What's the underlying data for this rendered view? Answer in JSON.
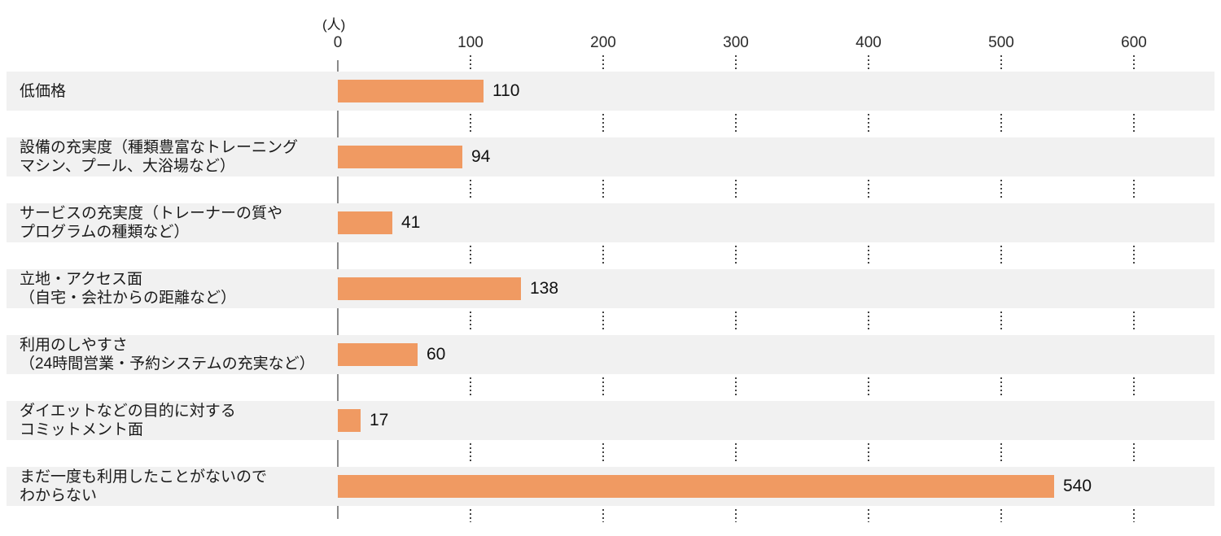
{
  "chart_data": {
    "type": "bar",
    "orientation": "horizontal",
    "title": "",
    "unit_label": "(人)",
    "xlabel": "",
    "ylabel": "",
    "x_ticks": [
      "0",
      "100",
      "200",
      "300",
      "400",
      "500",
      "600"
    ],
    "x_tick_values": [
      0,
      100,
      200,
      300,
      400,
      500,
      600
    ],
    "xlim": [
      0,
      660
    ],
    "grid": "dotted vertical gridlines shown only in white gaps between row bands",
    "legend": "none",
    "bar_color": "#F09A62",
    "row_band_color": "#F1F1F1",
    "categories": [
      [
        "低価格"
      ],
      [
        "設備の充実度（種類豊富なトレーニング",
        "マシン、プール、大浴場など）"
      ],
      [
        "サービスの充実度（トレーナーの質や",
        "プログラムの種類など）"
      ],
      [
        "立地・アクセス面",
        "（自宅・会社からの距離など）"
      ],
      [
        "利用のしやすさ",
        "（24時間営業・予約システムの充実など）"
      ],
      [
        "ダイエットなどの目的に対する",
        "コミットメント面"
      ],
      [
        "まだ一度も利用したことがないので",
        "わからない"
      ]
    ],
    "values": [
      110,
      94,
      41,
      138,
      60,
      17,
      540
    ]
  }
}
